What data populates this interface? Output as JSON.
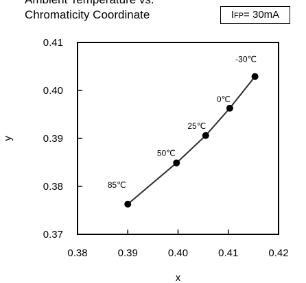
{
  "chart_data": {
    "type": "line",
    "title_line1": "Ambient Temperature vs.",
    "title_line2": "Chromaticity Coordinate",
    "condition": {
      "prefix": "I",
      "subscript": "FP",
      "value": "= 30mA"
    },
    "xlabel": "x",
    "ylabel": "y",
    "xlim": [
      0.38,
      0.42
    ],
    "ylim": [
      0.37,
      0.41
    ],
    "xticks": [
      "0.38",
      "0.39",
      "0.40",
      "0.41",
      "0.42"
    ],
    "yticks": [
      "0.37",
      "0.38",
      "0.39",
      "0.40",
      "0.41"
    ],
    "grid": false,
    "series": [
      {
        "points": [
          {
            "x": 0.39,
            "y": 0.3763,
            "label": "85℃"
          },
          {
            "x": 0.3997,
            "y": 0.3849,
            "label": "50℃"
          },
          {
            "x": 0.4055,
            "y": 0.3906,
            "label": "25℃"
          },
          {
            "x": 0.4103,
            "y": 0.3963,
            "label": "0℃"
          },
          {
            "x": 0.4153,
            "y": 0.4029,
            "label": "-30℃"
          }
        ]
      }
    ]
  }
}
